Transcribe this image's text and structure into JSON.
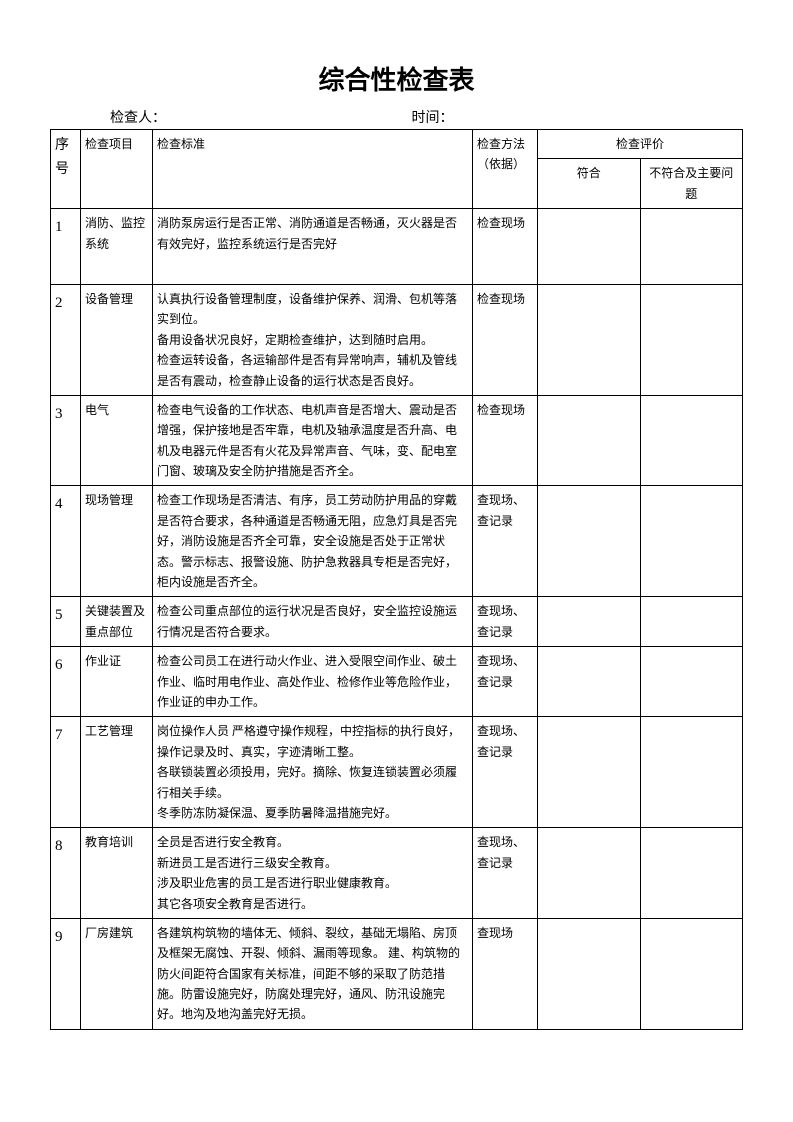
{
  "title": "综合性检查表",
  "header": {
    "inspector_label": "检查人：",
    "inspector_value": "",
    "time_label": "时间：",
    "time_value": ""
  },
  "columns": {
    "num": "序号",
    "item": "检查项目",
    "standard": "检查标准",
    "method": "检查方法（依据）",
    "eval": "检查评价",
    "conform": "符合",
    "issue": "不符合及主要问题"
  },
  "rows": [
    {
      "num": "1",
      "item": "消防、监控系统",
      "standard": "消防泵房运行是否正常、消防通道是否畅通，灭火器是否有效完好，监控系统运行是否完好",
      "method": "检查现场",
      "conform": "",
      "issue": ""
    },
    {
      "num": "2",
      "item": "设备管理",
      "standard": "认真执行设备管理制度，设备维护保养、润滑、包机等落实到位。\n备用设备状况良好，定期检查维护，达到随时启用。\n检查运转设备，各运输部件是否有异常响声，辅机及管线是否有震动，检查静止设备的运行状态是否良好。",
      "method": "检查现场",
      "conform": "",
      "issue": ""
    },
    {
      "num": "3",
      "item": "电气",
      "standard": "检查电气设备的工作状态、电机声音是否增大、震动是否增强，保护接地是否牢靠，电机及轴承温度是否升高、电机及电器元件是否有火花及异常声音、气味，变、配电室门窗、玻璃及安全防护措施是否齐全。",
      "method": "检查现场",
      "conform": "",
      "issue": ""
    },
    {
      "num": "4",
      "item": "现场管理",
      "standard": "检查工作现场是否清洁、有序，员工劳动防护用品的穿戴是否符合要求，各种通道是否畅通无阻，应急灯具是否完好，消防设施是否齐全可靠，安全设施是否处于正常状态。警示标志、报警设施、防护急救器具专柜是否完好，柜内设施是否齐全。",
      "method": "查现场、查记录",
      "conform": "",
      "issue": ""
    },
    {
      "num": "5",
      "item": "关键装置及重点部位",
      "standard": "检查公司重点部位的运行状况是否良好，安全监控设施运行情况是否符合要求。",
      "method": "查现场、查记录",
      "conform": "",
      "issue": ""
    },
    {
      "num": "6",
      "item": "作业证",
      "standard": "检查公司员工在进行动火作业、进入受限空间作业、破土作业、临时用电作业、高处作业、检修作业等危险作业，作业证的申办工作。",
      "method": "查现场、查记录",
      "conform": "",
      "issue": ""
    },
    {
      "num": "7",
      "item": "工艺管理",
      "standard": "岗位操作人员 严格遵守操作规程，中控指标的执行良好，操作记录及时、真实，字迹清晰工整。\n各联锁装置必须投用，完好。摘除、恢复连锁装置必须履行相关手续。\n冬季防冻防凝保温、夏季防暑降温措施完好。",
      "method": "查现场、查记录",
      "conform": "",
      "issue": ""
    },
    {
      "num": "8",
      "item": "教育培训",
      "standard": "全员是否进行安全教育。\n新进员工是否进行三级安全教育。\n涉及职业危害的员工是否进行职业健康教育。\n其它各项安全教育是否进行。",
      "method": "查现场、查记录",
      "conform": "",
      "issue": ""
    },
    {
      "num": "9",
      "item": "厂房建筑",
      "standard": "各建筑构筑物的墙体无、倾斜、裂纹，基础无塌陷、房顶及框架无腐蚀、开裂、倾斜、漏雨等现象。 建、构筑物的防火间距符合国家有关标准，间距不够的采取了防范措施。防雷设施完好，防腐处理完好，通风、防汛设施完好。地沟及地沟盖完好无损。",
      "method": "查现场",
      "conform": "",
      "issue": ""
    }
  ]
}
